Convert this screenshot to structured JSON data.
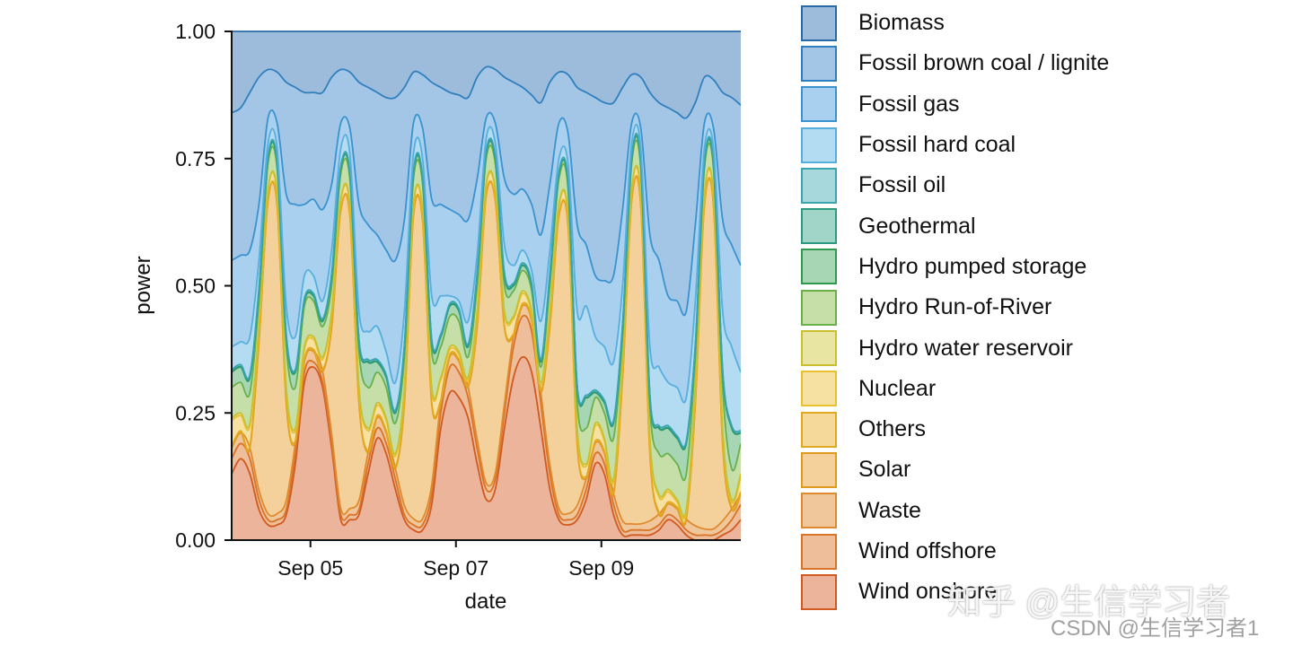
{
  "chart_data": {
    "type": "area",
    "stacked": true,
    "normalized": true,
    "xlabel": "date",
    "ylabel": "power",
    "ylim": [
      0,
      1
    ],
    "xlim": [
      "Sep 03 22:00",
      "Sep 10 22:00"
    ],
    "y_ticks": [
      "0.00",
      "0.25",
      "0.50",
      "0.75",
      "1.00"
    ],
    "x_ticks": [
      {
        "at": "Sep 05 00:00",
        "label": "Sep 05"
      },
      {
        "at": "Sep 07 00:00",
        "label": "Sep 07"
      },
      {
        "at": "Sep 09 00:00",
        "label": "Sep 09"
      }
    ],
    "grid": false,
    "legend_position": "right",
    "x": [
      "Sep 03 22:00",
      "Sep 04 01:00",
      "Sep 04 04:00",
      "Sep 04 07:00",
      "Sep 04 10:00",
      "Sep 04 13:00",
      "Sep 04 16:00",
      "Sep 04 19:00",
      "Sep 04 22:00",
      "Sep 05 01:00",
      "Sep 05 04:00",
      "Sep 05 07:00",
      "Sep 05 10:00",
      "Sep 05 13:00",
      "Sep 05 16:00",
      "Sep 05 19:00",
      "Sep 05 22:00",
      "Sep 06 01:00",
      "Sep 06 04:00",
      "Sep 06 07:00",
      "Sep 06 10:00",
      "Sep 06 13:00",
      "Sep 06 16:00",
      "Sep 06 19:00",
      "Sep 06 22:00",
      "Sep 07 01:00",
      "Sep 07 04:00",
      "Sep 07 07:00",
      "Sep 07 10:00",
      "Sep 07 13:00",
      "Sep 07 16:00",
      "Sep 07 19:00",
      "Sep 07 22:00",
      "Sep 08 01:00",
      "Sep 08 04:00",
      "Sep 08 07:00",
      "Sep 08 10:00",
      "Sep 08 13:00",
      "Sep 08 16:00",
      "Sep 08 19:00",
      "Sep 08 22:00",
      "Sep 09 01:00",
      "Sep 09 04:00",
      "Sep 09 07:00",
      "Sep 09 10:00",
      "Sep 09 13:00",
      "Sep 09 16:00",
      "Sep 09 19:00",
      "Sep 09 22:00",
      "Sep 10 01:00",
      "Sep 10 04:00",
      "Sep 10 07:00",
      "Sep 10 10:00",
      "Sep 10 13:00",
      "Sep 10 16:00",
      "Sep 10 19:00",
      "Sep 10 22:00"
    ],
    "series": [
      {
        "name": "Biomass",
        "fill": "#9dbcdb",
        "edge": "#2a6aa8",
        "values": [
          0.16,
          0.15,
          0.12,
          0.09,
          0.075,
          0.08,
          0.1,
          0.11,
          0.12,
          0.12,
          0.12,
          0.09,
          0.075,
          0.08,
          0.1,
          0.11,
          0.12,
          0.13,
          0.13,
          0.11,
          0.08,
          0.085,
          0.1,
          0.11,
          0.12,
          0.125,
          0.13,
          0.09,
          0.07,
          0.075,
          0.09,
          0.1,
          0.11,
          0.125,
          0.14,
          0.1,
          0.08,
          0.085,
          0.11,
          0.12,
          0.13,
          0.14,
          0.14,
          0.11,
          0.085,
          0.09,
          0.12,
          0.14,
          0.15,
          0.16,
          0.17,
          0.14,
          0.09,
          0.095,
          0.12,
          0.13,
          0.145
        ]
      },
      {
        "name": "Fossil brown coal / lignite",
        "fill": "#a4c6e6",
        "edge": "#2f7fbf",
        "values": [
          0.29,
          0.29,
          0.31,
          0.25,
          0.095,
          0.1,
          0.22,
          0.23,
          0.22,
          0.21,
          0.23,
          0.21,
          0.105,
          0.11,
          0.24,
          0.27,
          0.28,
          0.3,
          0.32,
          0.26,
          0.1,
          0.105,
          0.23,
          0.23,
          0.23,
          0.235,
          0.24,
          0.2,
          0.1,
          0.105,
          0.2,
          0.22,
          0.2,
          0.215,
          0.26,
          0.2,
          0.1,
          0.115,
          0.27,
          0.3,
          0.35,
          0.35,
          0.34,
          0.24,
          0.095,
          0.1,
          0.28,
          0.31,
          0.37,
          0.37,
          0.38,
          0.24,
          0.09,
          0.095,
          0.25,
          0.29,
          0.315
        ]
      },
      {
        "name": "Fossil gas",
        "fill": "#a9d0ee",
        "edge": "#3a92cf",
        "values": [
          0.17,
          0.17,
          0.17,
          0.11,
          0.05,
          0.05,
          0.22,
          0.26,
          0.14,
          0.15,
          0.18,
          0.13,
          0.05,
          0.05,
          0.21,
          0.21,
          0.18,
          0.2,
          0.24,
          0.18,
          0.06,
          0.06,
          0.19,
          0.18,
          0.17,
          0.17,
          0.2,
          0.15,
          0.04,
          0.04,
          0.13,
          0.14,
          0.12,
          0.13,
          0.17,
          0.13,
          0.07,
          0.06,
          0.17,
          0.12,
          0.12,
          0.13,
          0.17,
          0.15,
          0.04,
          0.04,
          0.22,
          0.21,
          0.17,
          0.17,
          0.17,
          0.15,
          0.05,
          0.04,
          0.18,
          0.2,
          0.21
        ]
      },
      {
        "name": "Fossil hard coal",
        "fill": "#b3dbf2",
        "edge": "#58aedc",
        "values": [
          0.045,
          0.045,
          0.075,
          0.055,
          0.025,
          0.025,
          0.055,
          0.065,
          0.045,
          0.035,
          0.035,
          0.045,
          0.035,
          0.035,
          0.055,
          0.055,
          0.065,
          0.045,
          0.055,
          0.065,
          0.035,
          0.035,
          0.085,
          0.075,
          0.015,
          0.015,
          0.045,
          0.035,
          0.025,
          0.025,
          0.055,
          0.035,
          0.025,
          0.025,
          0.075,
          0.045,
          0.025,
          0.035,
          0.145,
          0.175,
          0.105,
          0.105,
          0.115,
          0.075,
          0.025,
          0.025,
          0.095,
          0.115,
          0.085,
          0.095,
          0.085,
          0.085,
          0.025,
          0.025,
          0.115,
          0.155,
          0.115
        ]
      },
      {
        "name": "Fossil oil",
        "fill": "#a7d8dc",
        "edge": "#3aa4b0",
        "values": [
          0.004,
          0.004,
          0.004,
          0.004,
          0.004,
          0.004,
          0.004,
          0.004,
          0.004,
          0.004,
          0.004,
          0.004,
          0.004,
          0.004,
          0.004,
          0.004,
          0.004,
          0.004,
          0.004,
          0.004,
          0.004,
          0.004,
          0.004,
          0.004,
          0.004,
          0.004,
          0.004,
          0.004,
          0.004,
          0.004,
          0.004,
          0.004,
          0.004,
          0.004,
          0.004,
          0.004,
          0.004,
          0.004,
          0.004,
          0.004,
          0.004,
          0.004,
          0.004,
          0.004,
          0.004,
          0.004,
          0.004,
          0.004,
          0.004,
          0.004,
          0.004,
          0.004,
          0.004,
          0.004,
          0.004,
          0.004,
          0.004
        ]
      },
      {
        "name": "Geothermal",
        "fill": "#a0d5c7",
        "edge": "#2a9a80",
        "values": [
          0.001,
          0.001,
          0.001,
          0.001,
          0.001,
          0.001,
          0.001,
          0.001,
          0.001,
          0.001,
          0.001,
          0.001,
          0.001,
          0.001,
          0.001,
          0.001,
          0.001,
          0.001,
          0.001,
          0.001,
          0.001,
          0.001,
          0.001,
          0.001,
          0.001,
          0.001,
          0.001,
          0.001,
          0.001,
          0.001,
          0.001,
          0.001,
          0.001,
          0.001,
          0.001,
          0.001,
          0.001,
          0.001,
          0.001,
          0.001,
          0.001,
          0.001,
          0.001,
          0.001,
          0.001,
          0.001,
          0.001,
          0.001,
          0.001,
          0.001,
          0.001,
          0.001,
          0.001,
          0.001,
          0.001,
          0.001,
          0.001
        ]
      },
      {
        "name": "Hydro pumped storage",
        "fill": "#a7d6b4",
        "edge": "#2f9a4e",
        "values": [
          0.03,
          0.03,
          0.03,
          0.02,
          0.01,
          0.01,
          0.02,
          0.03,
          0.01,
          0.01,
          0.01,
          0.02,
          0.01,
          0.01,
          0.02,
          0.05,
          0.02,
          0.02,
          0.02,
          0.02,
          0.01,
          0.01,
          0.02,
          0.02,
          0.02,
          0.02,
          0.02,
          0.02,
          0.01,
          0.01,
          0.02,
          0.01,
          0.01,
          0.01,
          0.01,
          0.02,
          0.01,
          0.01,
          0.03,
          0.06,
          0.01,
          0.02,
          0.03,
          0.02,
          0.01,
          0.01,
          0.02,
          0.05,
          0.05,
          0.05,
          0.06,
          0.02,
          0.01,
          0.01,
          0.03,
          0.08,
          0.02
        ]
      },
      {
        "name": "Hydro Run-of-River",
        "fill": "#c6dfa9",
        "edge": "#6ab04a",
        "values": [
          0.06,
          0.06,
          0.06,
          0.05,
          0.05,
          0.05,
          0.08,
          0.08,
          0.08,
          0.07,
          0.06,
          0.05,
          0.05,
          0.05,
          0.07,
          0.08,
          0.06,
          0.06,
          0.06,
          0.06,
          0.05,
          0.05,
          0.07,
          0.06,
          0.06,
          0.06,
          0.04,
          0.05,
          0.05,
          0.05,
          0.05,
          0.05,
          0.04,
          0.04,
          0.03,
          0.05,
          0.05,
          0.05,
          0.05,
          0.07,
          0.05,
          0.05,
          0.08,
          0.05,
          0.05,
          0.05,
          0.06,
          0.08,
          0.07,
          0.07,
          0.07,
          0.06,
          0.05,
          0.05,
          0.08,
          0.06,
          0.06
        ]
      },
      {
        "name": "Hydro water reservoir",
        "fill": "#e8e4a2",
        "edge": "#c8c030",
        "values": [
          0.005,
          0.005,
          0.005,
          0.004,
          0.003,
          0.003,
          0.004,
          0.005,
          0.005,
          0.005,
          0.005,
          0.004,
          0.003,
          0.003,
          0.004,
          0.005,
          0.005,
          0.005,
          0.005,
          0.004,
          0.003,
          0.003,
          0.004,
          0.005,
          0.005,
          0.005,
          0.005,
          0.004,
          0.003,
          0.003,
          0.004,
          0.005,
          0.005,
          0.005,
          0.005,
          0.004,
          0.003,
          0.003,
          0.004,
          0.005,
          0.005,
          0.005,
          0.005,
          0.004,
          0.003,
          0.003,
          0.004,
          0.005,
          0.005,
          0.005,
          0.005,
          0.004,
          0.003,
          0.003,
          0.004,
          0.005,
          0.005
        ]
      },
      {
        "name": "Nuclear",
        "fill": "#f6e0a2",
        "edge": "#e8c030",
        "values": [
          0.05,
          0.03,
          0.04,
          0.025,
          0.018,
          0.018,
          0.025,
          0.02,
          0.02,
          0.02,
          0.02,
          0.025,
          0.018,
          0.018,
          0.025,
          0.04,
          0.02,
          0.02,
          0.02,
          0.025,
          0.018,
          0.018,
          0.025,
          0.04,
          0.01,
          0.01,
          0.01,
          0.025,
          0.018,
          0.018,
          0.025,
          0.03,
          0.02,
          0.01,
          0.01,
          0.025,
          0.018,
          0.018,
          0.025,
          0.02,
          0.03,
          0.02,
          0.02,
          0.025,
          0.018,
          0.018,
          0.025,
          0.03,
          0.02,
          0.01,
          0.01,
          0.025,
          0.018,
          0.018,
          0.025,
          0.01,
          0.03
        ]
      },
      {
        "name": "Others",
        "fill": "#f5d99b",
        "edge": "#e3a820",
        "values": [
          0.004,
          0.004,
          0.004,
          0.003,
          0.002,
          0.002,
          0.003,
          0.004,
          0.004,
          0.004,
          0.004,
          0.003,
          0.002,
          0.002,
          0.003,
          0.004,
          0.004,
          0.004,
          0.004,
          0.003,
          0.002,
          0.002,
          0.003,
          0.004,
          0.004,
          0.004,
          0.004,
          0.003,
          0.002,
          0.002,
          0.003,
          0.004,
          0.004,
          0.004,
          0.004,
          0.003,
          0.002,
          0.002,
          0.003,
          0.004,
          0.004,
          0.004,
          0.004,
          0.003,
          0.002,
          0.002,
          0.003,
          0.004,
          0.004,
          0.004,
          0.004,
          0.003,
          0.002,
          0.002,
          0.003,
          0.004,
          0.004
        ]
      },
      {
        "name": "Solar",
        "fill": "#f4d19b",
        "edge": "#e09a20",
        "values": [
          0,
          0,
          0,
          0.29,
          0.615,
          0.605,
          0.19,
          0,
          0,
          0,
          0,
          0.21,
          0.585,
          0.575,
          0.19,
          0,
          0,
          0,
          0,
          0.2,
          0.595,
          0.585,
          0.16,
          0,
          0,
          0,
          0,
          0.22,
          0.565,
          0.535,
          0.15,
          0,
          0,
          0,
          0,
          0.27,
          0.575,
          0.565,
          0.12,
          0,
          0,
          0,
          0,
          0.28,
          0.635,
          0.625,
          0.13,
          0,
          0,
          0,
          0,
          0.24,
          0.635,
          0.635,
          0.15,
          0,
          0
        ]
      },
      {
        "name": "Waste",
        "fill": "#f0c79b",
        "edge": "#e08a30",
        "values": [
          0.021,
          0.021,
          0.021,
          0.018,
          0.012,
          0.012,
          0.018,
          0.021,
          0.021,
          0.021,
          0.021,
          0.018,
          0.012,
          0.012,
          0.018,
          0.021,
          0.021,
          0.021,
          0.021,
          0.018,
          0.012,
          0.012,
          0.018,
          0.021,
          0.021,
          0.021,
          0.021,
          0.018,
          0.012,
          0.012,
          0.018,
          0.021,
          0.021,
          0.021,
          0.021,
          0.018,
          0.012,
          0.012,
          0.018,
          0.021,
          0.021,
          0.021,
          0.021,
          0.018,
          0.012,
          0.012,
          0.018,
          0.021,
          0.021,
          0.021,
          0.021,
          0.018,
          0.012,
          0.012,
          0.018,
          0.021,
          0.021
        ]
      },
      {
        "name": "Wind offshore",
        "fill": "#eebd99",
        "edge": "#d87328",
        "values": [
          0.03,
          0.03,
          0.03,
          0.02,
          0.01,
          0.01,
          0.01,
          0.02,
          0.02,
          0.01,
          0.01,
          0.01,
          0.01,
          0.01,
          0.01,
          0.02,
          0.02,
          0.02,
          0.02,
          0.01,
          0.01,
          0.01,
          0.02,
          0.03,
          0.05,
          0.05,
          0.04,
          0.03,
          0.02,
          0.02,
          0.03,
          0.06,
          0.08,
          0.08,
          0.05,
          0.03,
          0.01,
          0.01,
          0.01,
          0.02,
          0.02,
          0.02,
          0.02,
          0.01,
          0.01,
          0.01,
          0.01,
          0.01,
          0.01,
          0.01,
          0.01,
          0.01,
          0.01,
          0.01,
          0.01,
          0.02,
          0.03
        ]
      },
      {
        "name": "Wind onshore",
        "fill": "#ebb49b",
        "edge": "#d05a20",
        "values": [
          0.13,
          0.16,
          0.13,
          0.06,
          0.03,
          0.03,
          0.05,
          0.15,
          0.31,
          0.34,
          0.3,
          0.18,
          0.04,
          0.04,
          0.05,
          0.13,
          0.2,
          0.17,
          0.1,
          0.04,
          0.02,
          0.02,
          0.07,
          0.22,
          0.29,
          0.28,
          0.24,
          0.15,
          0.08,
          0.1,
          0.22,
          0.32,
          0.36,
          0.33,
          0.22,
          0.1,
          0.04,
          0.03,
          0.04,
          0.08,
          0.15,
          0.13,
          0.05,
          0.01,
          0.01,
          0.01,
          0.01,
          0.02,
          0.04,
          0.03,
          0.01,
          0,
          0,
          0,
          0.01,
          0.02,
          0.04
        ]
      }
    ]
  },
  "watermark": {
    "zhihu": "知乎 @生信学习者",
    "csdn": "CSDN @生信学习者1"
  }
}
